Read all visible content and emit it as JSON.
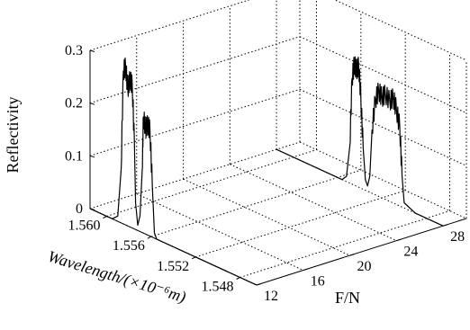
{
  "chart_data": {
    "type": "line",
    "view": "3d-waterfall",
    "title": "",
    "xlabel": "Wavelength/(×10⁻⁶m)",
    "ylabel": "F/N",
    "zlabel": "Reflectivity",
    "xlim": [
      1.5465,
      1.5615
    ],
    "ylim": [
      12,
      30
    ],
    "zlim": [
      0,
      0.3
    ],
    "xticks": [
      "1.548",
      "1.552",
      "1.556",
      "1.560"
    ],
    "yticks": [
      "12",
      "16",
      "20",
      "24",
      "28"
    ],
    "zticks": [
      "0",
      "0.1",
      "0.2",
      "0.3"
    ],
    "grid": true,
    "series": [
      {
        "F": 12,
        "spectrum": {
          "x": [
            1.5465,
            1.554,
            1.5555,
            1.5557,
            1.5559,
            1.5561,
            1.5563,
            1.5565,
            1.5567,
            1.5568,
            1.557,
            1.5572,
            1.5574,
            1.5575,
            1.5577,
            1.5579,
            1.5581,
            1.5583,
            1.5585,
            1.5587,
            1.559,
            1.5595,
            1.5615
          ],
          "y": [
            0,
            0,
            0,
            0.01,
            0.1,
            0.2,
            0.21,
            0.2,
            0.22,
            0.12,
            0.03,
            0.01,
            0.05,
            0.16,
            0.27,
            0.28,
            0.26,
            0.3,
            0.29,
            0.1,
            0.01,
            0,
            0
          ]
        }
      },
      {
        "F": 28,
        "spectrum": {
          "x": [
            1.5465,
            1.549,
            1.55,
            1.5502,
            1.5504,
            1.5507,
            1.551,
            1.5513,
            1.5517,
            1.552,
            1.5523,
            1.5526,
            1.5529,
            1.5531,
            1.5533,
            1.5535,
            1.5537,
            1.5539,
            1.5541,
            1.5543,
            1.5545,
            1.5547,
            1.5549,
            1.5552,
            1.5556,
            1.5615
          ],
          "y": [
            0,
            0,
            0.01,
            0.06,
            0.15,
            0.18,
            0.2,
            0.19,
            0.2,
            0.19,
            0.2,
            0.18,
            0.12,
            0.03,
            0.01,
            0.02,
            0.08,
            0.17,
            0.23,
            0.22,
            0.23,
            0.2,
            0.07,
            0.01,
            0,
            0
          ]
        }
      }
    ]
  }
}
